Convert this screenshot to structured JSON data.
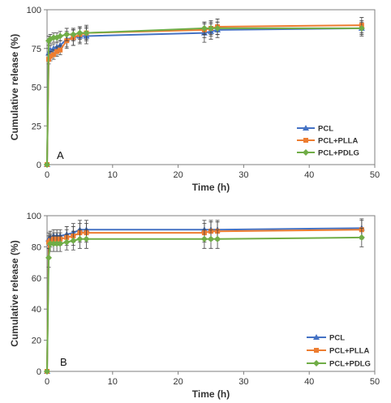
{
  "chart_data": [
    {
      "type": "line",
      "panel_label": "A",
      "xlabel": "Time (h)",
      "ylabel": "Cumulative release (%)",
      "xlim": [
        0,
        50
      ],
      "ylim": [
        0,
        100
      ],
      "xticks": [
        0,
        10,
        20,
        30,
        40,
        50
      ],
      "yticks": [
        0,
        25,
        50,
        75,
        100
      ],
      "grid": false,
      "legend_position": "bottom-right",
      "series": [
        {
          "name": "PCL",
          "marker": "triangle",
          "color": "#4472c4",
          "x": [
            0,
            0.25,
            0.5,
            1,
            1.5,
            2,
            3,
            4,
            5,
            6,
            24,
            25,
            26,
            48
          ],
          "y": [
            0,
            72,
            74,
            75,
            76,
            77,
            81,
            82,
            83,
            83,
            85,
            86,
            87,
            88
          ],
          "err": [
            0,
            3,
            3,
            3,
            3,
            3,
            5,
            5,
            5,
            5,
            6,
            5,
            5,
            5
          ]
        },
        {
          "name": "PCL+PLLA",
          "marker": "square",
          "color": "#ed7d31",
          "x": [
            0,
            0.25,
            0.5,
            1,
            1.5,
            2,
            3,
            4,
            5,
            6,
            24,
            25,
            26,
            48
          ],
          "y": [
            0,
            68,
            70,
            71,
            73,
            74,
            80,
            82,
            84,
            85,
            87,
            88,
            89,
            90
          ],
          "err": [
            0,
            3,
            3,
            3,
            3,
            3,
            5,
            5,
            5,
            5,
            5,
            5,
            5,
            5
          ]
        },
        {
          "name": "PCL+PDLG",
          "marker": "diamond",
          "color": "#70ad47",
          "x": [
            0,
            0.25,
            0.5,
            1,
            1.5,
            2,
            3,
            4,
            5,
            6,
            24,
            25,
            26,
            48
          ],
          "y": [
            0,
            80,
            81,
            82,
            82,
            83,
            84,
            84,
            85,
            85,
            88,
            88,
            88,
            88
          ],
          "err": [
            0,
            3,
            3,
            3,
            3,
            3,
            4,
            4,
            4,
            4,
            4,
            4,
            4,
            4
          ]
        }
      ]
    },
    {
      "type": "line",
      "panel_label": "B",
      "xlabel": "Time (h)",
      "ylabel": "Cumulative release (%)",
      "xlim": [
        0,
        50
      ],
      "ylim": [
        0,
        100
      ],
      "xticks": [
        0,
        10,
        20,
        30,
        40,
        50
      ],
      "yticks": [
        0,
        20,
        40,
        60,
        80,
        100
      ],
      "grid": false,
      "legend_position": "bottom-right",
      "series": [
        {
          "name": "PCL",
          "marker": "triangle",
          "color": "#4472c4",
          "x": [
            0,
            0.25,
            0.5,
            1,
            1.5,
            2,
            3,
            4,
            5,
            6,
            24,
            25,
            26,
            48
          ],
          "y": [
            0,
            85,
            86,
            87,
            87,
            87,
            88,
            89,
            91,
            91,
            91,
            91,
            91,
            92
          ],
          "err": [
            0,
            4,
            4,
            4,
            4,
            4,
            5,
            6,
            6,
            6,
            6,
            6,
            6,
            6
          ]
        },
        {
          "name": "PCL+PLLA",
          "marker": "square",
          "color": "#ed7d31",
          "x": [
            0,
            0.25,
            0.5,
            1,
            1.5,
            2,
            3,
            4,
            5,
            6,
            24,
            25,
            26,
            48
          ],
          "y": [
            0,
            83,
            84,
            85,
            85,
            85,
            86,
            87,
            89,
            89,
            89,
            90,
            90,
            91
          ],
          "err": [
            0,
            4,
            4,
            4,
            4,
            4,
            5,
            6,
            6,
            6,
            6,
            6,
            6,
            6
          ]
        },
        {
          "name": "PCL+PDLG",
          "marker": "diamond",
          "color": "#70ad47",
          "x": [
            0,
            0.25,
            0.5,
            1,
            1.5,
            2,
            3,
            4,
            5,
            6,
            24,
            25,
            26,
            48
          ],
          "y": [
            0,
            73,
            82,
            82,
            82,
            82,
            83,
            84,
            85,
            85,
            85,
            85,
            85,
            86
          ],
          "err": [
            0,
            6,
            5,
            5,
            5,
            5,
            5,
            6,
            6,
            6,
            6,
            6,
            6,
            6
          ]
        }
      ]
    }
  ]
}
